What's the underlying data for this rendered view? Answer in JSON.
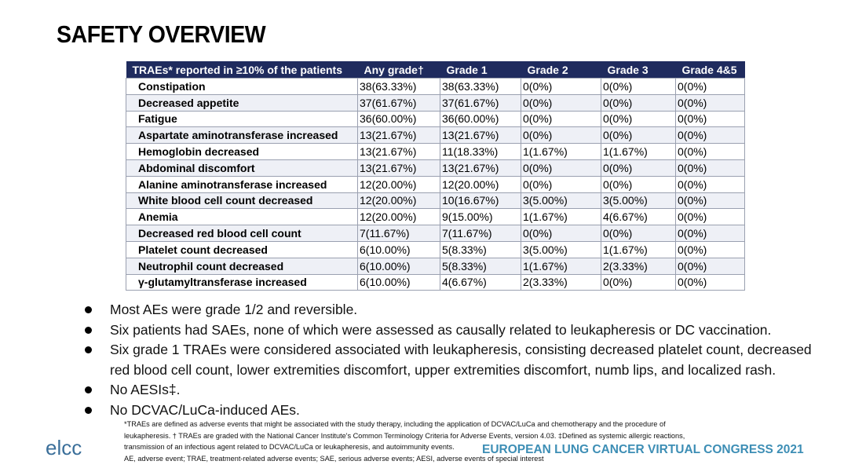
{
  "header": {
    "title": "SAFETY OVERVIEW"
  },
  "table": {
    "columns": [
      "TRAEs* reported in ≥10% of the patients",
      "Any grade†",
      "Grade 1",
      "Grade 2",
      "Grade 3",
      "Grade 4&5"
    ],
    "rows": [
      [
        "Constipation",
        "38(63.33%)",
        "38(63.33%)",
        "0(0%)",
        "0(0%)",
        "0(0%)"
      ],
      [
        "Decreased appetite",
        "37(61.67%)",
        "37(61.67%)",
        "0(0%)",
        "0(0%)",
        "0(0%)"
      ],
      [
        "Fatigue",
        "36(60.00%)",
        "36(60.00%)",
        "0(0%)",
        "0(0%)",
        "0(0%)"
      ],
      [
        "Aspartate aminotransferase increased",
        "13(21.67%)",
        "13(21.67%)",
        "0(0%)",
        "0(0%)",
        "0(0%)"
      ],
      [
        "Hemoglobin decreased",
        "13(21.67%)",
        "11(18.33%)",
        "1(1.67%)",
        "1(1.67%)",
        "0(0%)"
      ],
      [
        "Abdominal discomfort",
        "13(21.67%)",
        "13(21.67%)",
        "0(0%)",
        "0(0%)",
        "0(0%)"
      ],
      [
        "Alanine aminotransferase increased",
        "12(20.00%)",
        "12(20.00%)",
        "0(0%)",
        "0(0%)",
        "0(0%)"
      ],
      [
        "White blood cell count decreased",
        "12(20.00%)",
        "10(16.67%)",
        "3(5.00%)",
        "3(5.00%)",
        "0(0%)"
      ],
      [
        "Anemia",
        "12(20.00%)",
        "9(15.00%)",
        "1(1.67%)",
        "4(6.67%)",
        "0(0%)"
      ],
      [
        "Decreased red blood cell count",
        "7(11.67%)",
        "7(11.67%)",
        "0(0%)",
        "0(0%)",
        "0(0%)"
      ],
      [
        "Platelet count decreased",
        "6(10.00%)",
        "5(8.33%)",
        "3(5.00%)",
        "1(1.67%)",
        "0(0%)"
      ],
      [
        "Neutrophil count decreased",
        "6(10.00%)",
        "5(8.33%)",
        "1(1.67%)",
        "2(3.33%)",
        "0(0%)"
      ],
      [
        "γ-glutamyltransferase increased",
        "6(10.00%)",
        "4(6.67%)",
        "2(3.33%)",
        "0(0%)",
        "0(0%)"
      ]
    ]
  },
  "bullets": [
    "Most AEs were grade 1/2 and reversible.",
    "Six patients had SAEs, none of which were assessed as causally related to leukapheresis or DC vaccination.",
    "Six grade 1 TRAEs were considered associated with leukapheresis, consisting decreased platelet count, decreased red blood cell count, lower extremities discomfort, upper extremities discomfort, numb lips, and localized rash.",
    "No AESIs‡.",
    "No DCVAC/LuCa-induced AEs."
  ],
  "footnotes": [
    "*TRAEs are defined as adverse events that might be associated with the study therapy, including the application of DCVAC/LuCa and chemotherapy and the procedure of",
    "leukapheresis. † TRAEs are graded with the National Cancer Institute's Common Terminology Criteria for Adverse Events, version 4.03. ‡Defined as systemic allergic reactions,",
    "transmission of an infectious agent related to DCVAC/LuCa or leukapheresis, and autoimmunity events.",
    "AE, adverse event; TRAE, treatment-related adverse events; SAE, serious adverse events; AESI, adverse events of special interest"
  ],
  "footer": {
    "logo": "elcc",
    "congress": "EUROPEAN LUNG CANCER VIRTUAL CONGRESS 2021"
  }
}
